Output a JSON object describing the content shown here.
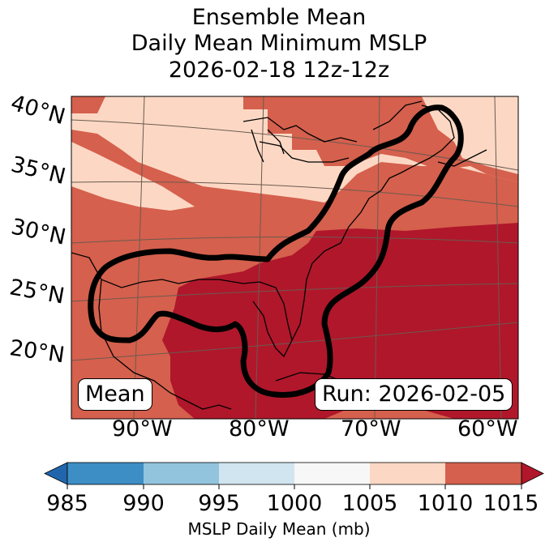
{
  "title": {
    "line1": "Ensemble Mean",
    "line2": "Daily Mean Minimum MSLP",
    "line3": "2026-02-18 12z-12z"
  },
  "map": {
    "lat_labels": [
      "40°N",
      "35°N",
      "30°N",
      "25°N",
      "20°N"
    ],
    "lon_labels": [
      "90°W",
      "80°W",
      "70°W",
      "60°W"
    ],
    "left_box": "Mean",
    "right_box": "Run: 2026-02-05",
    "colors": {
      "c1005": "#fcd8c4",
      "c1010": "#d5604d",
      "c1015": "#b0172b",
      "contour": "#000000",
      "coast": "#000000"
    }
  },
  "colorbar": {
    "ticks": [
      "985",
      "990",
      "995",
      "1000",
      "1005",
      "1010",
      "1015"
    ],
    "label": "MSLP Daily Mean (mb)",
    "colors": [
      "#2166ac",
      "#3d8ec4",
      "#92c4de",
      "#d1e5f0",
      "#f7f7f7",
      "#fcd8c4",
      "#d5604d",
      "#b0172b"
    ]
  }
}
